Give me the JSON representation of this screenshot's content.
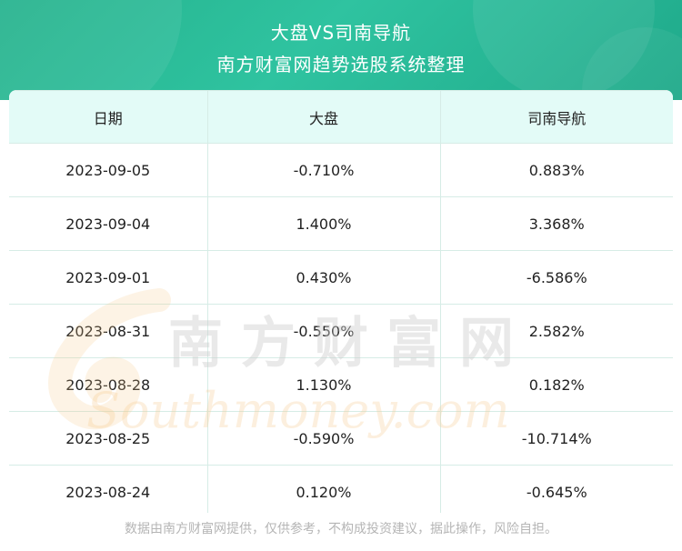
{
  "header": {
    "title": "大盘VS司南导航",
    "subtitle": "南方财富网趋势选股系统整理"
  },
  "table": {
    "columns": [
      "日期",
      "大盘",
      "司南导航"
    ],
    "rows": [
      [
        "2023-09-05",
        "-0.710%",
        "0.883%"
      ],
      [
        "2023-09-04",
        "1.400%",
        "3.368%"
      ],
      [
        "2023-09-01",
        "0.430%",
        "-6.586%"
      ],
      [
        "2023-08-31",
        "-0.550%",
        "2.582%"
      ],
      [
        "2023-08-28",
        "1.130%",
        "0.182%"
      ],
      [
        "2023-08-25",
        "-0.590%",
        "-10.714%"
      ],
      [
        "2023-08-24",
        "0.120%",
        "-0.645%"
      ]
    ]
  },
  "watermark": {
    "cn": "南方财富网",
    "en": "Southmoney.com"
  },
  "footer": "数据由南方财富网提供，仅供参考，不构成投资建议，据此操作，风险自担。",
  "colors": {
    "header_bg": "#25b28d",
    "table_header_bg": "#e3fbf7",
    "border": "#d6ece6",
    "footer_text": "#b5b5b5"
  }
}
